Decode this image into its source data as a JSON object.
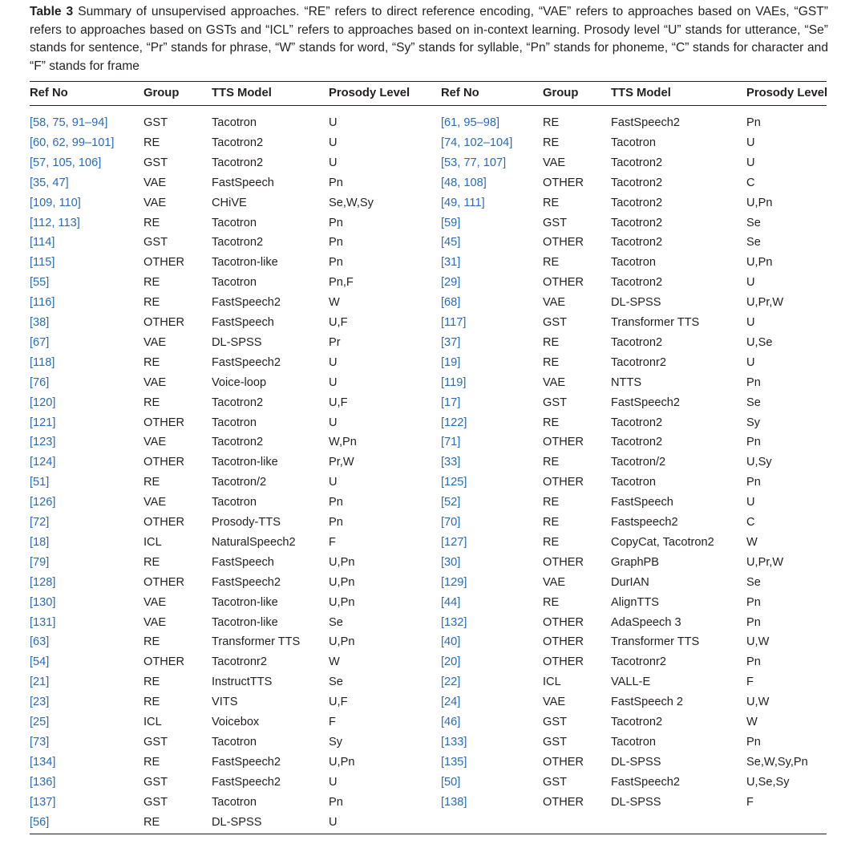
{
  "caption": {
    "label": "Table 3",
    "text": "Summary of unsupervised approaches. “RE” refers to direct reference encoding, “VAE” refers to approaches based on VAEs, “GST” refers to approaches based on GSTs and “ICL” refers to approaches based on in-context learning. Prosody level “U” stands for utterance, “Se” stands for sentence, “Pr” stands for phrase, “W” stands for word, “Sy” stands for syllable, “Pn” stands for phoneme, “C” stands for character and “F” stands for frame"
  },
  "headers": {
    "left": [
      "Ref No",
      "Group",
      "TTS Model",
      "Prosody Level"
    ],
    "right": [
      "Ref No",
      "Group",
      "TTS Model",
      "Prosody Level"
    ]
  },
  "rows": [
    {
      "l": [
        "[58, 75, 91–94]",
        "GST",
        "Tacotron",
        "U"
      ],
      "r": [
        "[61, 95–98]",
        "RE",
        "FastSpeech2",
        "Pn"
      ]
    },
    {
      "l": [
        "[60, 62, 99–101]",
        "RE",
        "Tacotron2",
        "U"
      ],
      "r": [
        "[74, 102–104]",
        "RE",
        "Tacotron",
        "U"
      ]
    },
    {
      "l": [
        "[57, 105, 106]",
        "GST",
        "Tacotron2",
        "U"
      ],
      "r": [
        "[53, 77, 107]",
        "VAE",
        "Tacotron2",
        "U"
      ]
    },
    {
      "l": [
        "[35, 47]",
        "VAE",
        "FastSpeech",
        "Pn"
      ],
      "r": [
        "[48, 108]",
        "OTHER",
        "Tacotron2",
        "C"
      ]
    },
    {
      "l": [
        "[109, 110]",
        "VAE",
        "CHiVE",
        "Se,W,Sy"
      ],
      "r": [
        "[49, 111]",
        "RE",
        "Tacotron2",
        "U,Pn"
      ]
    },
    {
      "l": [
        "[112, 113]",
        "RE",
        "Tacotron",
        "Pn"
      ],
      "r": [
        "[59]",
        "GST",
        "Tacotron2",
        "Se"
      ]
    },
    {
      "l": [
        "[114]",
        "GST",
        "Tacotron2",
        "Pn"
      ],
      "r": [
        "[45]",
        "OTHER",
        "Tacotron2",
        "Se"
      ]
    },
    {
      "l": [
        "[115]",
        "OTHER",
        "Tacotron-like",
        "Pn"
      ],
      "r": [
        "[31]",
        "RE",
        "Tacotron",
        "U,Pn"
      ]
    },
    {
      "l": [
        "[55]",
        "RE",
        "Tacotron",
        "Pn,F"
      ],
      "r": [
        "[29]",
        "OTHER",
        "Tacotron2",
        "U"
      ]
    },
    {
      "l": [
        "[116]",
        "RE",
        "FastSpeech2",
        "W"
      ],
      "r": [
        "[68]",
        "VAE",
        "DL-SPSS",
        "U,Pr,W"
      ]
    },
    {
      "l": [
        "[38]",
        "OTHER",
        "FastSpeech",
        "U,F"
      ],
      "r": [
        "[117]",
        "GST",
        "Transformer TTS",
        "U"
      ]
    },
    {
      "l": [
        "[67]",
        "VAE",
        "DL-SPSS",
        "Pr"
      ],
      "r": [
        "[37]",
        "RE",
        "Tacotron2",
        "U,Se"
      ]
    },
    {
      "l": [
        "[118]",
        "RE",
        "FastSpeech2",
        "U"
      ],
      "r": [
        "[19]",
        "RE",
        "Tacotronr2",
        "U"
      ]
    },
    {
      "l": [
        "[76]",
        "VAE",
        "Voice-loop",
        "U"
      ],
      "r": [
        "[119]",
        "VAE",
        "NTTS",
        "Pn"
      ]
    },
    {
      "l": [
        "[120]",
        "RE",
        "Tacotron2",
        "U,F"
      ],
      "r": [
        "[17]",
        "GST",
        "FastSpeech2",
        "Se"
      ]
    },
    {
      "l": [
        "[121]",
        "OTHER",
        "Tacotron",
        "U"
      ],
      "r": [
        "[122]",
        "RE",
        "Tacotron2",
        "Sy"
      ]
    },
    {
      "l": [
        "[123]",
        "VAE",
        "Tacotron2",
        "W,Pn"
      ],
      "r": [
        "[71]",
        "OTHER",
        "Tacotron2",
        "Pn"
      ]
    },
    {
      "l": [
        "[124]",
        "OTHER",
        "Tacotron-like",
        "Pr,W"
      ],
      "r": [
        "[33]",
        "RE",
        "Tacotron/2",
        "U,Sy"
      ]
    },
    {
      "l": [
        "[51]",
        "RE",
        "Tacotron/2",
        "U"
      ],
      "r": [
        "[125]",
        "OTHER",
        "Tacotron",
        "Pn"
      ]
    },
    {
      "l": [
        "[126]",
        "VAE",
        "Tacotron",
        "Pn"
      ],
      "r": [
        "[52]",
        "RE",
        "FastSpeech",
        "U"
      ]
    },
    {
      "l": [
        "[72]",
        "OTHER",
        "Prosody-TTS",
        "Pn"
      ],
      "r": [
        "[70]",
        "RE",
        "Fastspeech2",
        "C"
      ]
    },
    {
      "l": [
        "[18]",
        "ICL",
        "NaturalSpeech2",
        "F"
      ],
      "r": [
        "[127]",
        "RE",
        "CopyCat, Tacotron2",
        "W"
      ]
    },
    {
      "l": [
        "[79]",
        "RE",
        "FastSpeech",
        "U,Pn"
      ],
      "r": [
        "[30]",
        "OTHER",
        "GraphPB",
        "U,Pr,W"
      ]
    },
    {
      "l": [
        "[128]",
        "OTHER",
        "FastSpeech2",
        "U,Pn"
      ],
      "r": [
        "[129]",
        "VAE",
        "DurIAN",
        "Se"
      ]
    },
    {
      "l": [
        "[130]",
        "VAE",
        "Tacotron-like",
        "U,Pn"
      ],
      "r": [
        "[44]",
        "RE",
        "AlignTTS",
        "Pn"
      ]
    },
    {
      "l": [
        "[131]",
        "VAE",
        "Tacotron-like",
        "Se"
      ],
      "r": [
        "[132]",
        "OTHER",
        "AdaSpeech 3",
        "Pn"
      ]
    },
    {
      "l": [
        "[63]",
        "RE",
        "Transformer TTS",
        "U,Pn"
      ],
      "r": [
        "[40]",
        "OTHER",
        "Transformer TTS",
        "U,W"
      ]
    },
    {
      "l": [
        "[54]",
        "OTHER",
        "Tacotronr2",
        "W"
      ],
      "r": [
        "[20]",
        "OTHER",
        "Tacotronr2",
        "Pn"
      ]
    },
    {
      "l": [
        "[21]",
        "RE",
        "InstructTTS",
        "Se"
      ],
      "r": [
        "[22]",
        "ICL",
        "VALL-E",
        "F"
      ]
    },
    {
      "l": [
        "[23]",
        "RE",
        "VITS",
        "U,F"
      ],
      "r": [
        "[24]",
        "VAE",
        "FastSpeech 2",
        "U,W"
      ]
    },
    {
      "l": [
        "[25]",
        "ICL",
        "Voicebox",
        "F"
      ],
      "r": [
        "[46]",
        "GST",
        "Tacotron2",
        "W"
      ]
    },
    {
      "l": [
        "[73]",
        "GST",
        "Tacotron",
        "Sy"
      ],
      "r": [
        "[133]",
        "GST",
        "Tacotron",
        "Pn"
      ]
    },
    {
      "l": [
        "[134]",
        "RE",
        "FastSpeech2",
        "U,Pn"
      ],
      "r": [
        "[135]",
        "OTHER",
        "DL-SPSS",
        "Se,W,Sy,Pn"
      ]
    },
    {
      "l": [
        "[136]",
        "GST",
        "FastSpeech2",
        "U"
      ],
      "r": [
        "[50]",
        "GST",
        "FastSpeech2",
        "U,Se,Sy"
      ]
    },
    {
      "l": [
        "[137]",
        "GST",
        "Tacotron",
        "Pn"
      ],
      "r": [
        "[138]",
        "OTHER",
        "DL-SPSS",
        "F"
      ]
    },
    {
      "l": [
        "[56]",
        "RE",
        "DL-SPSS",
        "U"
      ],
      "r": [
        "",
        "",
        "",
        ""
      ]
    }
  ]
}
